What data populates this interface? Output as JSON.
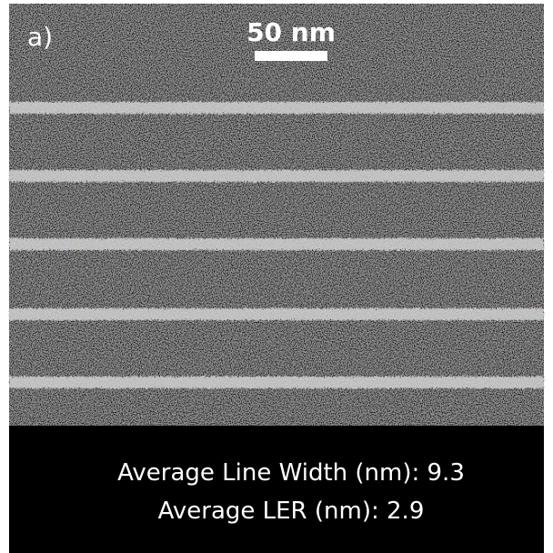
{
  "panel_label": "a)",
  "scale_bar": {
    "label": "50 nm"
  },
  "stats": [
    {
      "label": "Average Line Width (nm):",
      "value": "9.3"
    },
    {
      "label": "Average LER (nm):",
      "value": "2.9"
    }
  ]
}
